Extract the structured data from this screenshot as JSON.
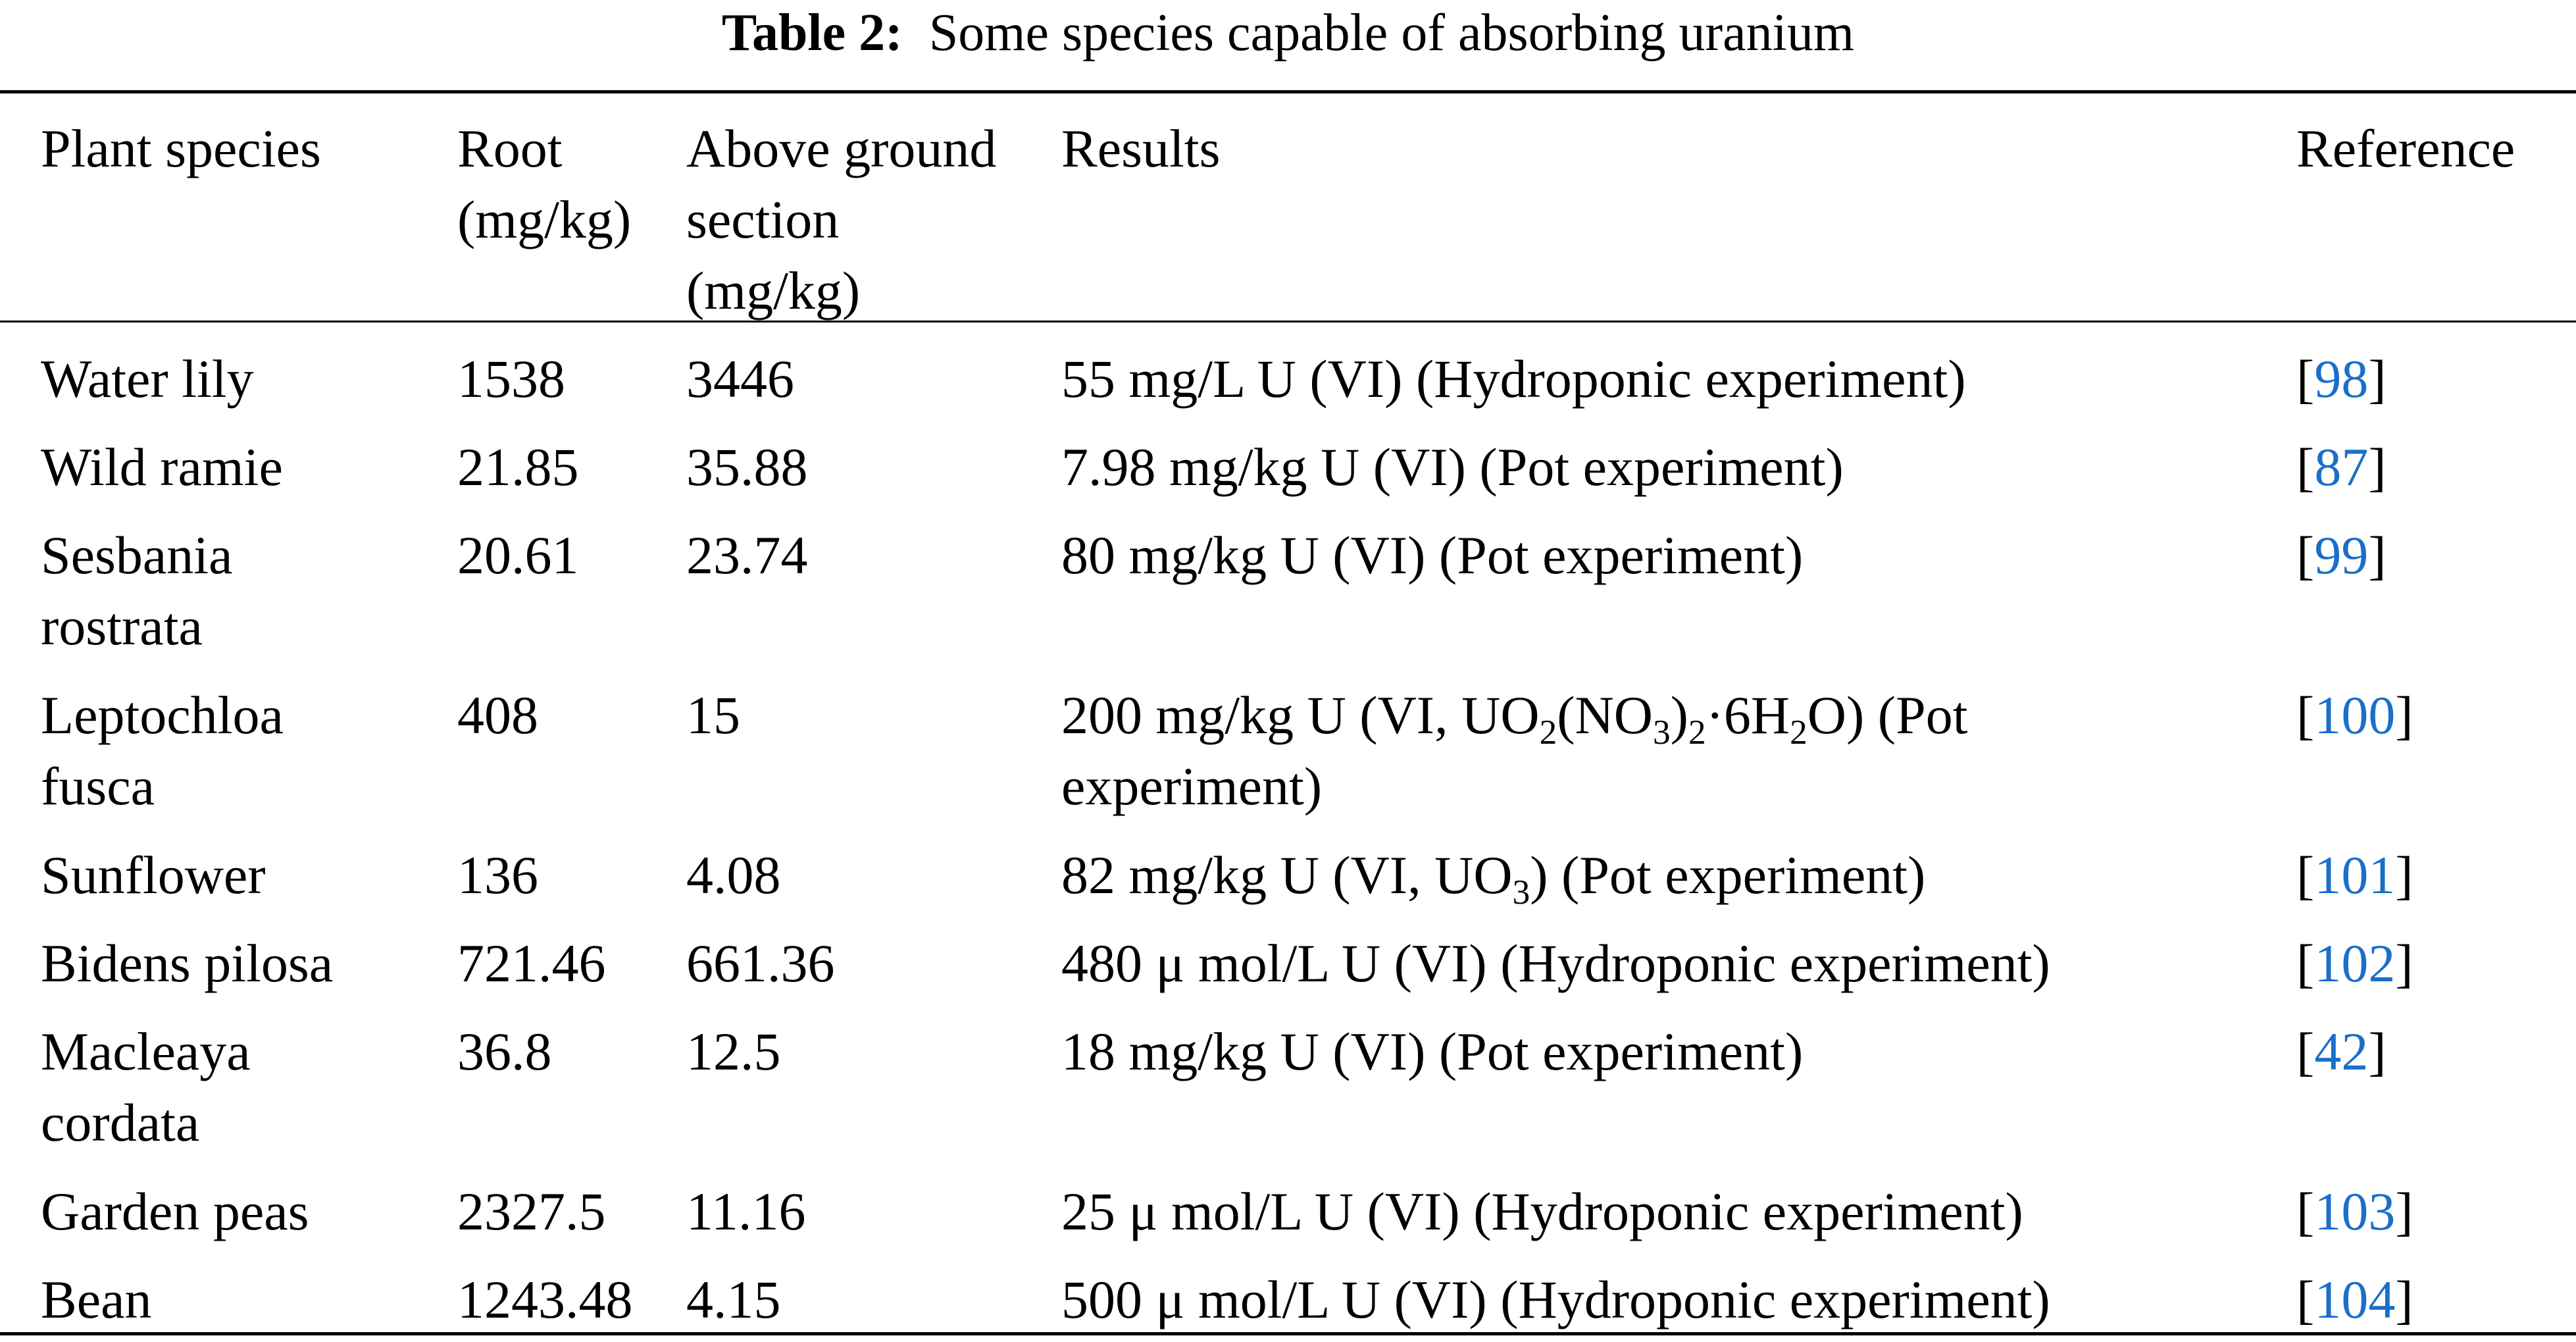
{
  "caption": {
    "label": "Table 2:",
    "text": "Some species capable of absorbing uranium"
  },
  "columns": {
    "species": [
      "Plant species"
    ],
    "root": [
      "Root",
      "(mg/kg)"
    ],
    "above": [
      "Above ground",
      "section",
      "(mg/kg)"
    ],
    "results": [
      "Results"
    ],
    "reference": [
      "Reference"
    ]
  },
  "rows": [
    {
      "species": [
        "Water lily"
      ],
      "root": "1538",
      "above": "3446",
      "results": [
        "55 mg/L U (VI) (Hydroponic experiment)"
      ],
      "ref": "98"
    },
    {
      "species": [
        "Wild ramie"
      ],
      "root": "21.85",
      "above": "35.88",
      "results": [
        "7.98 mg/kg U (VI) (Pot experiment)"
      ],
      "ref": "87"
    },
    {
      "species": [
        "Sesbania",
        "rostrata"
      ],
      "root": "20.61",
      "above": "23.74",
      "results": [
        "80 mg/kg U (VI) (Pot experiment)"
      ],
      "ref": "99"
    },
    {
      "species": [
        "Leptochloa",
        "fusca"
      ],
      "root": "408",
      "above": "15",
      "results": [
        "200 mg/kg U (VI, UO2(NO3)2·6H2O) (Pot",
        "experiment)"
      ],
      "ref": "100"
    },
    {
      "species": [
        "Sunflower"
      ],
      "root": "136",
      "above": "4.08",
      "results": [
        "82 mg/kg U (VI, UO3) (Pot experiment)"
      ],
      "ref": "101"
    },
    {
      "species": [
        "Bidens pilosa"
      ],
      "root": "721.46",
      "above": "661.36",
      "results": [
        "480 μ mol/L U (VI) (Hydroponic experiment)"
      ],
      "ref": "102"
    },
    {
      "species": [
        "Macleaya",
        "cordata"
      ],
      "root": "36.8",
      "above": "12.5",
      "results": [
        "18 mg/kg U (VI) (Pot experiment)"
      ],
      "ref": "42"
    },
    {
      "species": [
        "Garden peas"
      ],
      "root": "2327.5",
      "above": "11.16",
      "results": [
        "25 μ mol/L U (VI) (Hydroponic experiment)"
      ],
      "ref": "103"
    },
    {
      "species": [
        "Bean"
      ],
      "root": "1243.48",
      "above": "4.15",
      "results": [
        "500 μ mol/L U (VI) (Hydroponic experiment)"
      ],
      "ref": "104"
    }
  ],
  "colors": {
    "text": "#000000",
    "reference_link": "#1a6fc9",
    "background": "#ffffff"
  }
}
